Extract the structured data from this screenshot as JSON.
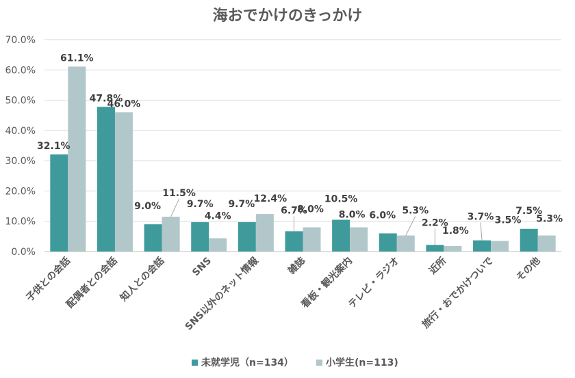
{
  "chart_data": {
    "type": "bar",
    "title": "海おでかけのきっかけ",
    "xlabel": "",
    "ylabel": "",
    "ylim": [
      0,
      70
    ],
    "yticks": [
      "0.0%",
      "10.0%",
      "20.0%",
      "30.0%",
      "40.0%",
      "50.0%",
      "60.0%",
      "70.0%"
    ],
    "grid": true,
    "legend_position": "bottom",
    "categories": [
      "子供との会話",
      "配偶者との会話",
      "知人との会話",
      "SNS",
      "SNS以外のネット情報",
      "雑誌",
      "看板・観光案内",
      "テレビ・ラジオ",
      "近所",
      "旅行・おでかけついで",
      "その他"
    ],
    "series": [
      {
        "name": "未就学児（n=134）",
        "color": "#3f9b9b",
        "values": [
          32.1,
          47.8,
          9.0,
          9.7,
          9.7,
          6.7,
          10.5,
          6.0,
          2.2,
          3.7,
          7.5
        ],
        "labels": [
          "32.1%",
          "47.8%",
          "9.0%",
          "9.7%",
          "9.7%",
          "6.7%",
          "10.5%",
          "6.0%",
          "2.2%",
          "3.7%",
          "7.5%"
        ]
      },
      {
        "name": "小学生(n=113)",
        "color": "#b2c7c9",
        "values": [
          61.1,
          46.0,
          11.5,
          4.4,
          12.4,
          8.0,
          8.0,
          5.3,
          1.8,
          3.5,
          5.3
        ],
        "labels": [
          "61.1%",
          "46.0%",
          "11.5%",
          "4.4%",
          "12.4%",
          "8.0%",
          "8.0%",
          "5.3%",
          "1.8%",
          "3.5%",
          "5.3%"
        ]
      }
    ]
  }
}
